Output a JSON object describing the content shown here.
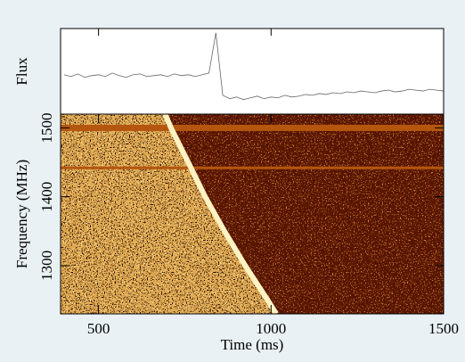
{
  "chart_data": [
    {
      "type": "line",
      "y_label": "Flux",
      "color": "#666666",
      "x": [
        400,
        420,
        440,
        460,
        480,
        500,
        520,
        540,
        560,
        580,
        600,
        620,
        640,
        660,
        680,
        700,
        720,
        740,
        760,
        780,
        800,
        820,
        840,
        860,
        880,
        900,
        920,
        940,
        960,
        980,
        1000,
        1020,
        1040,
        1060,
        1080,
        1100,
        1120,
        1140,
        1160,
        1180,
        1200,
        1220,
        1240,
        1260,
        1280,
        1300,
        1320,
        1340,
        1360,
        1380,
        1400,
        1420,
        1440,
        1460,
        1480,
        1500
      ],
      "values": [
        46,
        44,
        47,
        43,
        45,
        46,
        44,
        48,
        45,
        43,
        46,
        47,
        44,
        45,
        46,
        44,
        47,
        45,
        46,
        44,
        46,
        48,
        95,
        22,
        18,
        20,
        17,
        19,
        21,
        18,
        20,
        19,
        22,
        20,
        21,
        23,
        22,
        24,
        23,
        25,
        24,
        26,
        25,
        27,
        26,
        25,
        27,
        28,
        26,
        27,
        29,
        28,
        27,
        29,
        28,
        27
      ],
      "xlim": [
        390,
        1500
      ],
      "ylim": [
        0,
        100
      ]
    },
    {
      "type": "waterfall",
      "x_label": "Time (ms)",
      "y_label": "Frequency (MHz)",
      "xlim": [
        390,
        1500
      ],
      "ylim": [
        1230,
        1520
      ],
      "xticks": [
        500,
        1000,
        1500
      ],
      "yticks": [
        1300,
        1400,
        1500
      ],
      "sweep": {
        "x": [
          693,
          710,
          760,
          809,
          865,
          925,
          990,
          1015
        ],
        "y": [
          1520,
          1500,
          1450,
          1400,
          1350,
          1300,
          1250,
          1230
        ],
        "color": "#fff2c2"
      },
      "rfi": [
        1500,
        1442
      ],
      "rfi_color": "#b5560e",
      "colors": {
        "before": "#e0a850",
        "after": "#5a1406"
      }
    }
  ]
}
